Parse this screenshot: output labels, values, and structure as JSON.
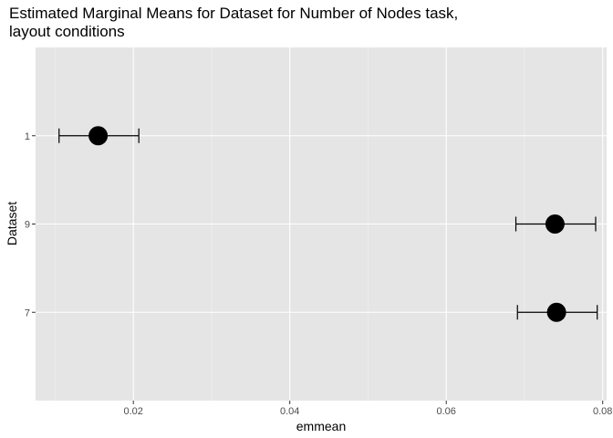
{
  "chart_data": {
    "type": "scatter",
    "title": "Estimated Marginal Means for Dataset for Number of Nodes task,\nlayout conditions",
    "xlabel": "emmean",
    "ylabel": "Dataset",
    "xlim": [
      0.0075,
      0.0805
    ],
    "x_ticks": [
      0.02,
      0.04,
      0.06,
      0.08
    ],
    "x_tick_labels": [
      "0.02",
      "0.04",
      "0.06",
      "0.08"
    ],
    "categories": [
      "7",
      "9",
      "1"
    ],
    "points": [
      {
        "category": "1",
        "emmean": 0.0155,
        "lower": 0.0105,
        "upper": 0.0207
      },
      {
        "category": "9",
        "emmean": 0.0739,
        "lower": 0.0689,
        "upper": 0.0791
      },
      {
        "category": "7",
        "emmean": 0.0741,
        "lower": 0.0691,
        "upper": 0.0793
      }
    ],
    "grid": true,
    "background": "#e5e5e5",
    "gridline_color": "#ffffff",
    "point_color": "#000000"
  }
}
